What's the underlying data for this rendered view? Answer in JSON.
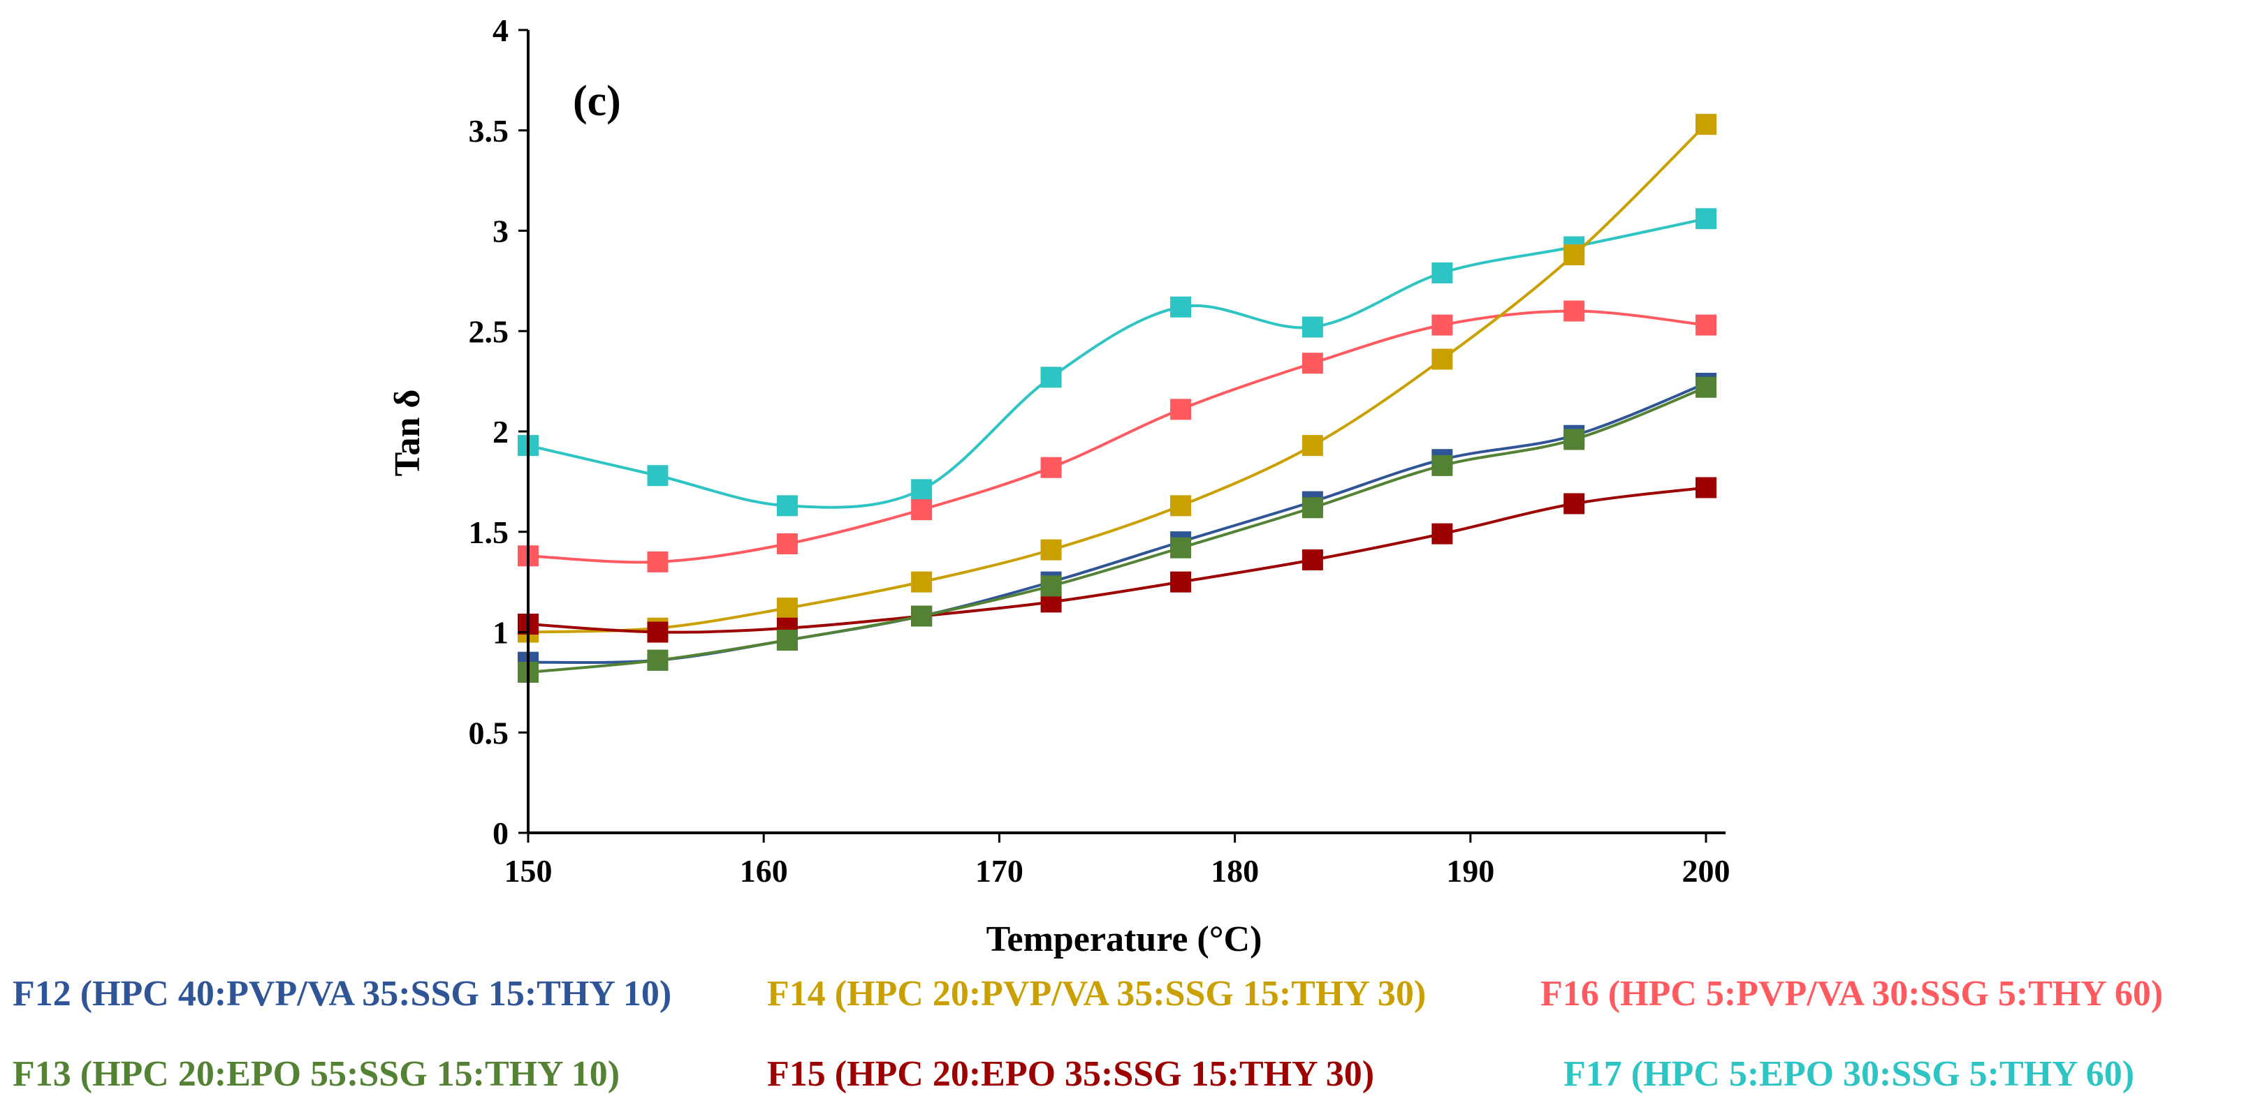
{
  "chart_data": {
    "type": "line",
    "panel_label": "(c)",
    "xlabel": "Temperature (°C)",
    "ylabel": "Tan δ",
    "xlim": [
      150,
      200
    ],
    "ylim": [
      0,
      4
    ],
    "xticks": [
      150,
      160,
      170,
      180,
      190,
      200
    ],
    "yticks": [
      0,
      0.5,
      1,
      1.5,
      2,
      2.5,
      3,
      3.5,
      4
    ],
    "x": [
      150,
      155.5,
      161,
      166.7,
      172.2,
      177.7,
      183.3,
      188.8,
      194.4,
      200
    ],
    "grid": false,
    "legend_position": "bottom",
    "series": [
      {
        "name": "F12 (HPC 40:PVP/VA  35:SSG 15:THY 10)",
        "color": "#2f5597",
        "values": [
          0.85,
          0.86,
          0.96,
          1.08,
          1.25,
          1.45,
          1.65,
          1.86,
          1.98,
          2.24
        ]
      },
      {
        "name": "F14 (HPC 20:PVP/VA  35:SSG 15:THY 30)",
        "color": "#c9a000",
        "values": [
          1.0,
          1.02,
          1.12,
          1.25,
          1.41,
          1.63,
          1.93,
          2.36,
          2.88,
          3.53
        ]
      },
      {
        "name": "F16 (HPC 5:PVP/VA  30:SSG 5:THY 60)",
        "color": "#ff5a5f",
        "values": [
          1.38,
          1.35,
          1.44,
          1.61,
          1.82,
          2.11,
          2.34,
          2.53,
          2.6,
          2.53
        ]
      },
      {
        "name": "F13 (HPC 20:EPO 55:SSG 15:THY 10)",
        "color": "#548235",
        "values": [
          0.8,
          0.86,
          0.96,
          1.08,
          1.23,
          1.42,
          1.62,
          1.83,
          1.96,
          2.22
        ]
      },
      {
        "name": "F15 (HPC 20:EPO 35:SSG 15:THY 30)",
        "color": "#9c0000",
        "values": [
          1.04,
          1.0,
          1.02,
          1.08,
          1.15,
          1.25,
          1.36,
          1.49,
          1.64,
          1.72
        ]
      },
      {
        "name": "F17 (HPC 5:EPO 30:SSG 5:THY 60)",
        "color": "#2ec4c4",
        "values": [
          1.93,
          1.78,
          1.63,
          1.71,
          2.27,
          2.62,
          2.52,
          2.79,
          2.92,
          3.06
        ]
      }
    ]
  }
}
